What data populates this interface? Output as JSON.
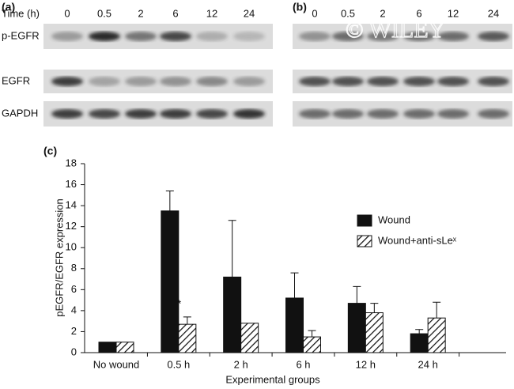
{
  "figure": {
    "panels": [
      {
        "label": "(a)",
        "time_label": "Time (h)",
        "lanes": [
          "0",
          "0.5",
          "2",
          "6",
          "12",
          "24"
        ],
        "rows": [
          "p-EGFR",
          "EGFR",
          "GAPDH"
        ]
      },
      {
        "label": "(b)",
        "lanes": [
          "0",
          "0.5",
          "2",
          "6",
          "12",
          "24"
        ],
        "watermark": "© WILEY"
      }
    ]
  },
  "chart_data": {
    "type": "bar",
    "panel_label": "(c)",
    "y_label": "pEGFR/EGFR expression",
    "x_label": "Experimental groups",
    "categories": [
      "No wound",
      "0.5 h",
      "2 h",
      "6 h",
      "12 h",
      "24 h"
    ],
    "series": [
      {
        "name": "Wound",
        "color": "#111111",
        "hatch": false,
        "values": [
          1.0,
          13.5,
          7.2,
          5.2,
          4.7,
          1.8
        ],
        "errors": [
          null,
          1.9,
          5.4,
          2.4,
          1.6,
          0.4
        ]
      },
      {
        "name": "Wound+anti-sLeˣ",
        "color": "#111111",
        "hatch": true,
        "values": [
          1.0,
          2.7,
          2.8,
          1.5,
          3.8,
          3.3
        ],
        "errors": [
          null,
          0.7,
          null,
          0.6,
          0.9,
          1.5
        ]
      }
    ],
    "annotations": [
      {
        "text": "*",
        "category": "0.5 h",
        "series": "Wound+anti-sLeˣ"
      }
    ],
    "ylim": [
      0,
      18
    ],
    "yticks": [
      0,
      2,
      4,
      6,
      8,
      10,
      12,
      14,
      16,
      18
    ],
    "grid": false,
    "legend": "right"
  }
}
